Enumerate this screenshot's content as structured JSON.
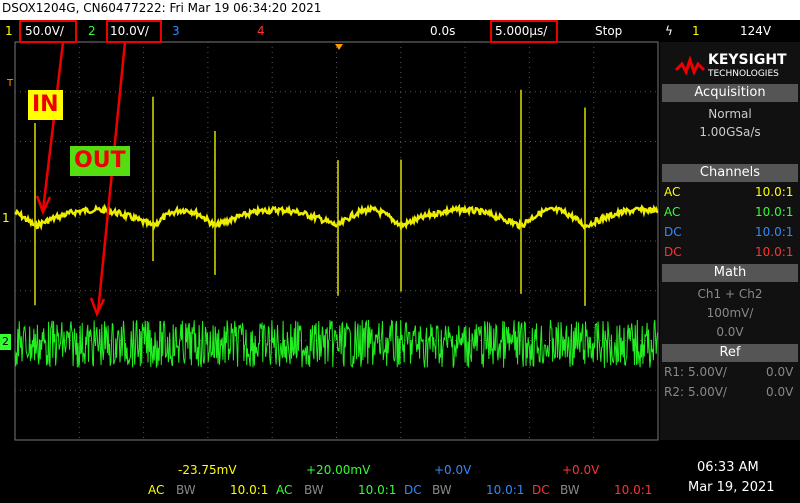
{
  "header": {
    "title": "DSOX1204G, CN60477222: Fri Mar 19 06:34:20 2021"
  },
  "top_bar": {
    "ch1_label": "1",
    "ch1_scale": "50.0V/",
    "ch2_label": "2",
    "ch2_scale": "10.0V/",
    "ch3_label": "3",
    "ch4_label": "4",
    "time_offset": "0.0s",
    "time_scale": "5.000µs/",
    "run_state": "Stop",
    "trigger_channel": "1",
    "trigger_level": "124V"
  },
  "annotations": {
    "in": "IN",
    "out": "OUT"
  },
  "markers": {
    "trigger": "T",
    "ch1": "1",
    "ch2": "2"
  },
  "logo": {
    "brand": "KEYSIGHT",
    "sub": "TECHNOLOGIES"
  },
  "acquisition": {
    "title": "Acquisition",
    "mode": "Normal",
    "rate": "1.00GSa/s"
  },
  "channels": {
    "title": "Channels",
    "rows": [
      [
        "AC",
        "10.0:1"
      ],
      [
        "AC",
        "10.0:1"
      ],
      [
        "DC",
        "10.0:1"
      ],
      [
        "DC",
        "10.0:1"
      ]
    ]
  },
  "math": {
    "title": "Math",
    "function": "Ch1 + Ch2",
    "scale": "100mV/",
    "offset": "0.0V"
  },
  "ref": {
    "title": "Ref",
    "rows": [
      [
        "R1:",
        "5.00V/",
        "0.0V"
      ],
      [
        "R2:",
        "5.00V/",
        "0.0V"
      ]
    ]
  },
  "footer": {
    "channels": [
      {
        "offset": "-23.75mV",
        "coupling": "AC",
        "bw": "BW",
        "probe": "10.0:1"
      },
      {
        "offset": "+20.00mV",
        "coupling": "AC",
        "bw": "BW",
        "probe": "10.0:1"
      },
      {
        "offset": "+0.0V",
        "coupling": "DC",
        "bw": "BW",
        "probe": "10.0:1"
      },
      {
        "offset": "+0.0V",
        "coupling": "DC",
        "bw": "BW",
        "probe": "10.0:1"
      }
    ],
    "time": "06:33 AM",
    "date": "Mar 19, 2021"
  }
}
